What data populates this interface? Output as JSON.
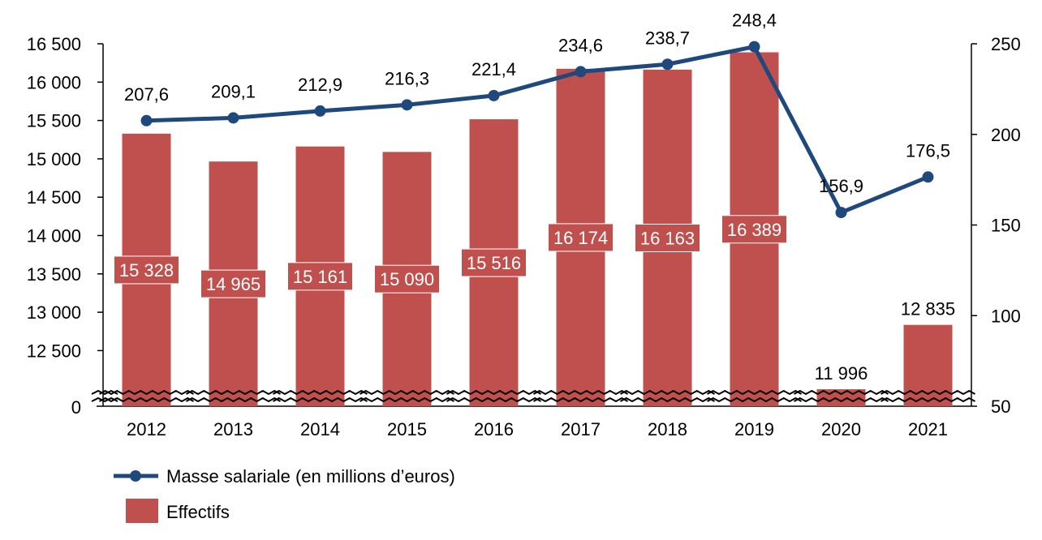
{
  "chart_data": {
    "type": "bar+line",
    "categories": [
      "2012",
      "2013",
      "2014",
      "2015",
      "2016",
      "2017",
      "2018",
      "2019",
      "2020",
      "2021"
    ],
    "series": [
      {
        "name": "Effectifs",
        "type": "bar",
        "axis": "left",
        "color": "#C0504D",
        "values": [
          15328,
          14965,
          15161,
          15090,
          15516,
          16174,
          16163,
          16389,
          11996,
          12835
        ],
        "labels": [
          "15 328",
          "14 965",
          "15 161",
          "15 090",
          "15 516",
          "16 174",
          "16 163",
          "16 389",
          "11 996",
          "12 835"
        ]
      },
      {
        "name": "Masse salariale (en millions d’euros)",
        "type": "line",
        "axis": "right",
        "color": "#1F497D",
        "values": [
          207.6,
          209.1,
          212.9,
          216.3,
          221.4,
          234.6,
          238.7,
          248.4,
          156.9,
          176.5
        ],
        "labels": [
          "207,6",
          "209,1",
          "212,9",
          "216,3",
          "221,4",
          "234,6",
          "238,7",
          "248,4",
          "156,9",
          "176,5"
        ]
      }
    ],
    "left_axis": {
      "ticks": [
        "16 500",
        "16 000",
        "15 500",
        "15 000",
        "14 500",
        "14 000",
        "13 500",
        "13 000",
        "12 500"
      ],
      "tick_values": [
        16500,
        16000,
        15500,
        15000,
        14500,
        14000,
        13500,
        13000,
        12500
      ],
      "bottom_label": "0",
      "broken": true
    },
    "right_axis": {
      "ticks": [
        "250",
        "200",
        "150",
        "100",
        "50"
      ],
      "tick_values": [
        250,
        200,
        150,
        100,
        50
      ],
      "ylim": [
        50,
        250
      ]
    },
    "legend": {
      "placement": "bottom-left",
      "entries": [
        "Masse salariale (en millions d’euros)",
        "Effectifs"
      ]
    },
    "grid": false
  }
}
